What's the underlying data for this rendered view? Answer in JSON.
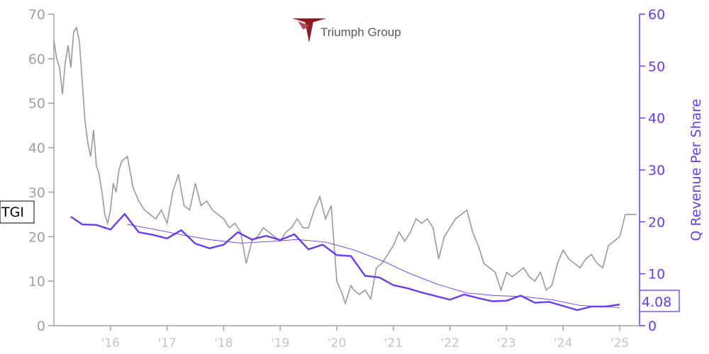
{
  "logo": {
    "text": "Triumph Group",
    "icon": "triumph-logo-icon",
    "colors": [
      "#8b1c24",
      "#5a5a5a"
    ]
  },
  "ticker": "TGI",
  "last_value_label": "4.08",
  "colors": {
    "price": "#999999",
    "revenue": "#6a3de8",
    "trend": "#6a3de8"
  },
  "chart_data": {
    "type": "line",
    "x_range": [
      2015.0,
      2025.35
    ],
    "x_ticks": [
      {
        "value": 2016,
        "label": "'16"
      },
      {
        "value": 2017,
        "label": "'17"
      },
      {
        "value": 2018,
        "label": "'18"
      },
      {
        "value": 2019,
        "label": "'19"
      },
      {
        "value": 2020,
        "label": "'20"
      },
      {
        "value": 2021,
        "label": "'21"
      },
      {
        "value": 2022,
        "label": "'22"
      },
      {
        "value": 2023,
        "label": "'23"
      },
      {
        "value": 2024,
        "label": "'24"
      },
      {
        "value": 2025,
        "label": "'25"
      }
    ],
    "y_left": {
      "range": [
        0,
        70
      ],
      "ticks": [
        0,
        10,
        20,
        30,
        40,
        50,
        60,
        70
      ]
    },
    "y_right": {
      "label": "Q Revenue Per Share",
      "range": [
        0,
        60
      ],
      "ticks": [
        0,
        10,
        20,
        30,
        40,
        50,
        60
      ]
    },
    "series": [
      {
        "name": "TGI",
        "axis": "left",
        "x": [
          2015.0,
          2015.05,
          2015.1,
          2015.15,
          2015.2,
          2015.25,
          2015.3,
          2015.35,
          2015.4,
          2015.45,
          2015.5,
          2015.55,
          2015.6,
          2015.65,
          2015.7,
          2015.75,
          2015.8,
          2015.85,
          2015.9,
          2015.95,
          2016.0,
          2016.05,
          2016.1,
          2016.15,
          2016.2,
          2016.3,
          2016.4,
          2016.5,
          2016.6,
          2016.7,
          2016.8,
          2016.9,
          2017.0,
          2017.1,
          2017.2,
          2017.3,
          2017.4,
          2017.5,
          2017.6,
          2017.7,
          2017.8,
          2017.9,
          2018.0,
          2018.1,
          2018.2,
          2018.3,
          2018.4,
          2018.5,
          2018.6,
          2018.7,
          2018.8,
          2018.9,
          2019.0,
          2019.1,
          2019.2,
          2019.3,
          2019.4,
          2019.5,
          2019.6,
          2019.7,
          2019.8,
          2019.9,
          2020.0,
          2020.1,
          2020.15,
          2020.2,
          2020.25,
          2020.3,
          2020.4,
          2020.5,
          2020.6,
          2020.7,
          2020.8,
          2020.9,
          2021.0,
          2021.1,
          2021.2,
          2021.3,
          2021.4,
          2021.5,
          2021.6,
          2021.7,
          2021.8,
          2021.9,
          2022.0,
          2022.1,
          2022.2,
          2022.3,
          2022.4,
          2022.5,
          2022.6,
          2022.7,
          2022.8,
          2022.9,
          2023.0,
          2023.1,
          2023.2,
          2023.3,
          2023.4,
          2023.5,
          2023.6,
          2023.7,
          2023.8,
          2023.9,
          2024.0,
          2024.1,
          2024.2,
          2024.3,
          2024.4,
          2024.5,
          2024.6,
          2024.7,
          2024.8,
          2024.9,
          2025.0,
          2025.1,
          2025.2,
          2025.3
        ],
        "values": [
          64,
          60,
          58,
          52,
          59,
          63,
          58,
          66,
          67,
          64,
          55,
          46,
          41,
          38,
          44,
          36,
          34,
          30,
          25,
          23,
          26,
          32,
          30,
          35,
          37,
          38,
          31,
          28,
          26,
          25,
          24,
          26,
          23,
          30,
          34,
          27,
          26,
          32,
          27,
          28,
          26,
          25,
          24,
          22,
          23,
          21,
          14,
          19,
          20,
          22,
          21,
          20,
          19,
          21,
          22,
          24,
          22,
          22,
          26,
          29,
          24,
          27,
          10,
          7,
          5,
          7,
          9,
          8,
          7,
          8,
          6,
          13,
          14,
          16,
          18,
          21,
          19,
          21,
          24,
          23,
          24,
          22,
          15,
          20,
          22,
          24,
          25,
          26,
          21,
          18,
          14,
          13,
          12,
          8,
          12,
          11,
          12,
          13,
          11,
          10,
          12,
          8,
          9,
          14,
          17,
          15,
          14,
          13,
          15,
          16,
          14,
          13,
          18,
          19,
          20,
          25,
          25,
          25
        ]
      },
      {
        "name": "Q Revenue Per Share",
        "axis": "right",
        "x": [
          2015.3,
          2015.5,
          2015.75,
          2016.0,
          2016.25,
          2016.5,
          2016.75,
          2017.0,
          2017.25,
          2017.5,
          2017.75,
          2018.0,
          2018.25,
          2018.5,
          2018.75,
          2019.0,
          2019.25,
          2019.5,
          2019.75,
          2020.0,
          2020.25,
          2020.5,
          2020.75,
          2021.0,
          2021.25,
          2021.5,
          2021.75,
          2022.0,
          2022.25,
          2022.5,
          2022.75,
          2023.0,
          2023.25,
          2023.5,
          2023.75,
          2024.0,
          2024.25,
          2024.5,
          2024.75,
          2025.0
        ],
        "values": [
          21,
          19.5,
          19.4,
          18.5,
          21.5,
          18,
          17.5,
          16.8,
          18.4,
          15.8,
          14.9,
          15.6,
          18,
          16.6,
          17.3,
          16.5,
          17.6,
          14.7,
          15.6,
          13.6,
          13.4,
          9.6,
          9.3,
          7.8,
          7.2,
          6.4,
          5.7,
          5,
          6,
          5.3,
          4.7,
          4.8,
          5.8,
          4.4,
          4.6,
          3.8,
          3,
          3.7,
          3.7,
          4.08
        ]
      },
      {
        "name": "trend",
        "axis": "right",
        "x": [
          2016.3,
          2016.8,
          2017.3,
          2017.8,
          2018.3,
          2018.8,
          2019.3,
          2019.8,
          2020.3,
          2020.8,
          2021.3,
          2021.8,
          2022.3,
          2022.8,
          2023.3,
          2023.8,
          2024.3,
          2024.8,
          2025.0
        ],
        "values": [
          19.5,
          18.5,
          17.4,
          16.5,
          15.9,
          16.2,
          16.6,
          16.1,
          14.6,
          12.5,
          10,
          7.9,
          6.3,
          5.8,
          5.6,
          5,
          3.9,
          3.6,
          3.5
        ]
      }
    ]
  }
}
